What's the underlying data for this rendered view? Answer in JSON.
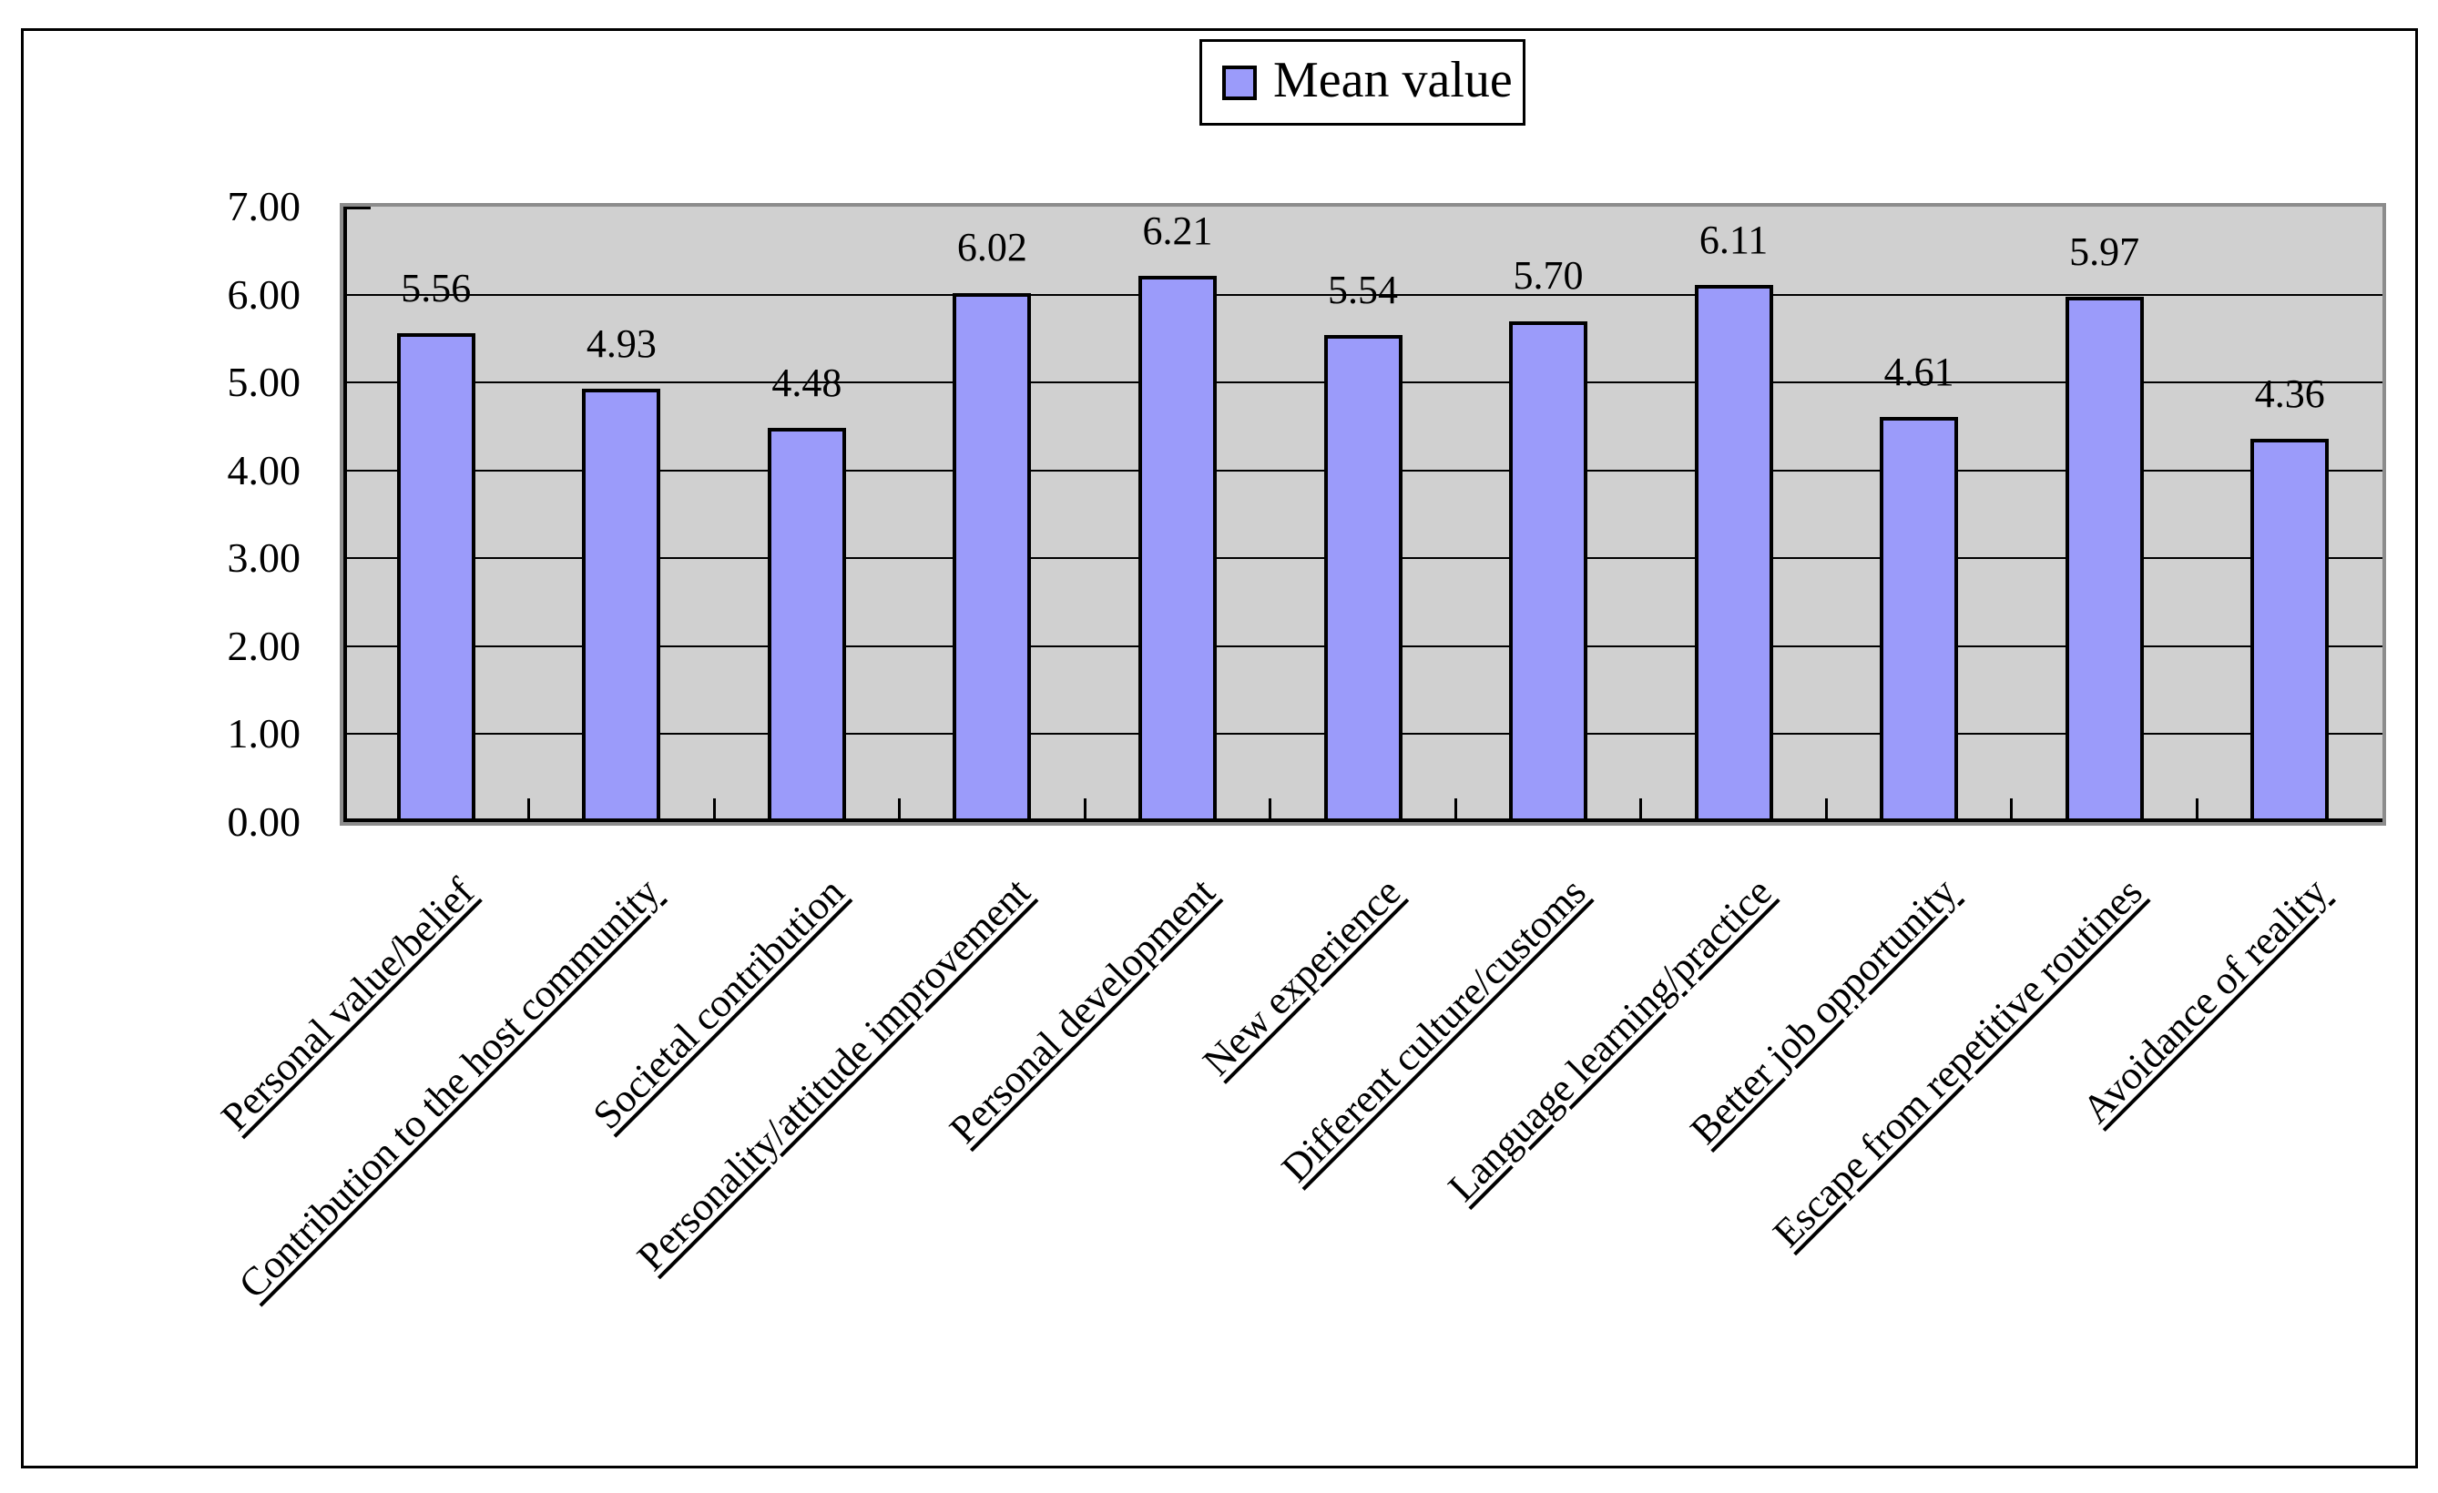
{
  "legend": {
    "label": "Mean value"
  },
  "y_axis": {
    "tick_labels": [
      "0.00",
      "1.00",
      "2.00",
      "3.00",
      "4.00",
      "5.00",
      "6.00",
      "7.00"
    ]
  },
  "chart_data": {
    "type": "bar",
    "title": "",
    "categories": [
      "Personal value/belief",
      "Contribution to the host community",
      "Societal contribution",
      "Personality/attitude improvement",
      "Personal development",
      "New experience",
      "Different culture/customs",
      "Language learning/practice",
      "Better job opportunity",
      "Escape from repetitive routines",
      "Avoidance of reality"
    ],
    "series": [
      {
        "name": "Mean value",
        "values": [
          5.56,
          4.93,
          4.48,
          6.02,
          6.21,
          5.54,
          5.7,
          6.11,
          4.61,
          5.97,
          4.36
        ]
      }
    ],
    "data_labels": [
      "5.56",
      "4.93",
      "4.48",
      "6.02",
      "6.21",
      "5.54",
      "5.70",
      "6.11",
      "4.61",
      "5.97",
      "4.36"
    ],
    "ylim": [
      0,
      7
    ],
    "ytick_step": 1,
    "grid": true,
    "legend_position": "top-center",
    "x_label_rotation_deg": 45,
    "colors": {
      "bar_fill": "#9B9BFA",
      "bar_border": "#000000",
      "plot_bg": "#D0D0D0",
      "plot_border": "#8C8C8C",
      "grid_line": "#000000",
      "text": "#000000",
      "page_bg": "#FFFFFF"
    }
  }
}
